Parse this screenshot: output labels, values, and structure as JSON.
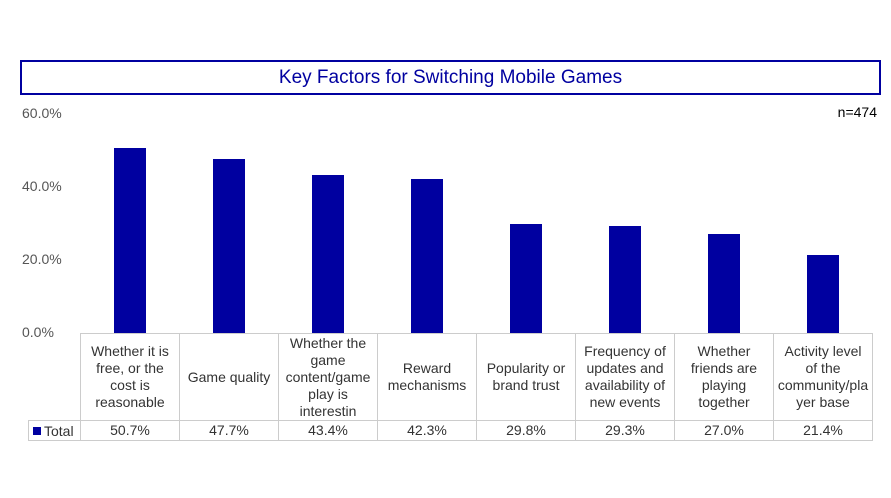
{
  "chart_data": {
    "type": "bar",
    "title": "Key Factors for Switching Mobile Games",
    "note": "n=474",
    "categories": [
      "Whether it is free, or the cost is reasonable",
      "Game quality",
      "Whether the game content/game play is interestin",
      "Reward mechanisms",
      "Popularity or brand trust",
      "Frequency of updates and availability of new events",
      "Whether friends are playing together",
      "Activity level of the community/pla yer base"
    ],
    "series": [
      {
        "name": "Total",
        "values": [
          50.7,
          47.7,
          43.4,
          42.3,
          29.8,
          29.3,
          27.0,
          21.4
        ],
        "color": "#0000a0"
      }
    ],
    "value_labels": [
      "50.7%",
      "47.7%",
      "43.4%",
      "42.3%",
      "29.8%",
      "29.3%",
      "27.0%",
      "21.4%"
    ],
    "yticks": [
      "0.0%",
      "20.0%",
      "40.0%",
      "60.0%"
    ],
    "ylim": [
      0,
      60
    ],
    "legend": "bottom-left table"
  }
}
